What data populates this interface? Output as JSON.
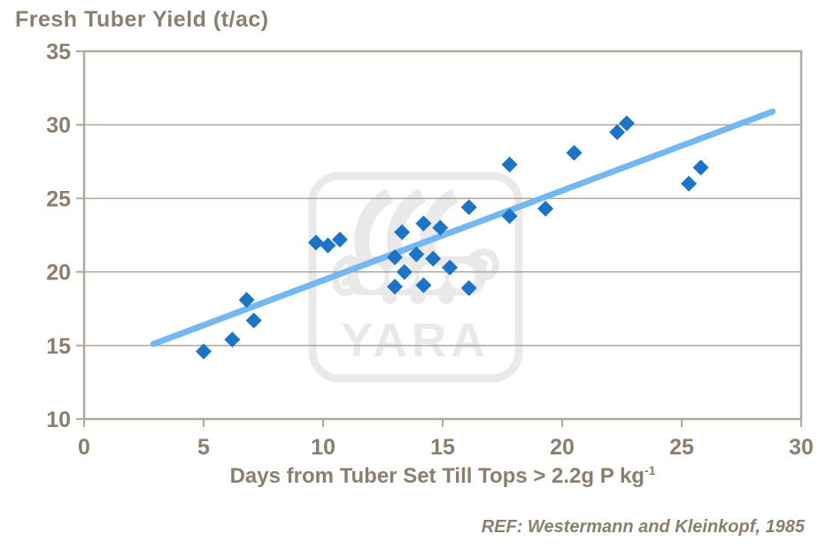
{
  "chart_data": {
    "type": "scatter",
    "title": "Fresh Tuber Yield (t/ac)",
    "xlabel": "Days from Tuber Set Till Tops > 2.2g P kg",
    "xlabel_superscript": "-1",
    "ref": "REF: Westermann and Kleinkopf, 1985",
    "watermark_text": "YARA",
    "xlim": [
      0,
      30
    ],
    "ylim": [
      10,
      35
    ],
    "x_ticks": [
      0,
      5,
      10,
      15,
      20,
      25,
      30
    ],
    "y_ticks": [
      10,
      15,
      20,
      25,
      30,
      35
    ],
    "gridlines": [
      15,
      20,
      25,
      30
    ],
    "grid_on": true,
    "legend": "none",
    "points": [
      [
        5.0,
        14.6
      ],
      [
        6.2,
        15.4
      ],
      [
        6.8,
        18.1
      ],
      [
        7.1,
        16.7
      ],
      [
        9.7,
        22.0
      ],
      [
        10.2,
        21.8
      ],
      [
        10.7,
        22.2
      ],
      [
        13.0,
        19.0
      ],
      [
        13.0,
        21.0
      ],
      [
        13.3,
        22.7
      ],
      [
        13.4,
        20.0
      ],
      [
        13.9,
        21.2
      ],
      [
        14.2,
        19.1
      ],
      [
        14.2,
        23.3
      ],
      [
        14.6,
        20.9
      ],
      [
        14.9,
        23.0
      ],
      [
        15.3,
        20.3
      ],
      [
        16.1,
        18.9
      ],
      [
        16.1,
        24.4
      ],
      [
        17.8,
        23.8
      ],
      [
        17.8,
        27.3
      ],
      [
        19.3,
        24.3
      ],
      [
        20.5,
        28.1
      ],
      [
        22.3,
        29.5
      ],
      [
        22.7,
        30.1
      ],
      [
        25.3,
        26.0
      ],
      [
        25.8,
        27.1
      ]
    ],
    "trendline": {
      "x1": 2.9,
      "y1": 15.1,
      "x2": 28.8,
      "y2": 30.9
    },
    "colors": {
      "marker": "#1B74C5",
      "trend": "#74B8F3",
      "text": "#8B7E6E",
      "grid": "#AB9F90",
      "border": "#B3A89C",
      "watermark": "#E9E9E9"
    }
  }
}
